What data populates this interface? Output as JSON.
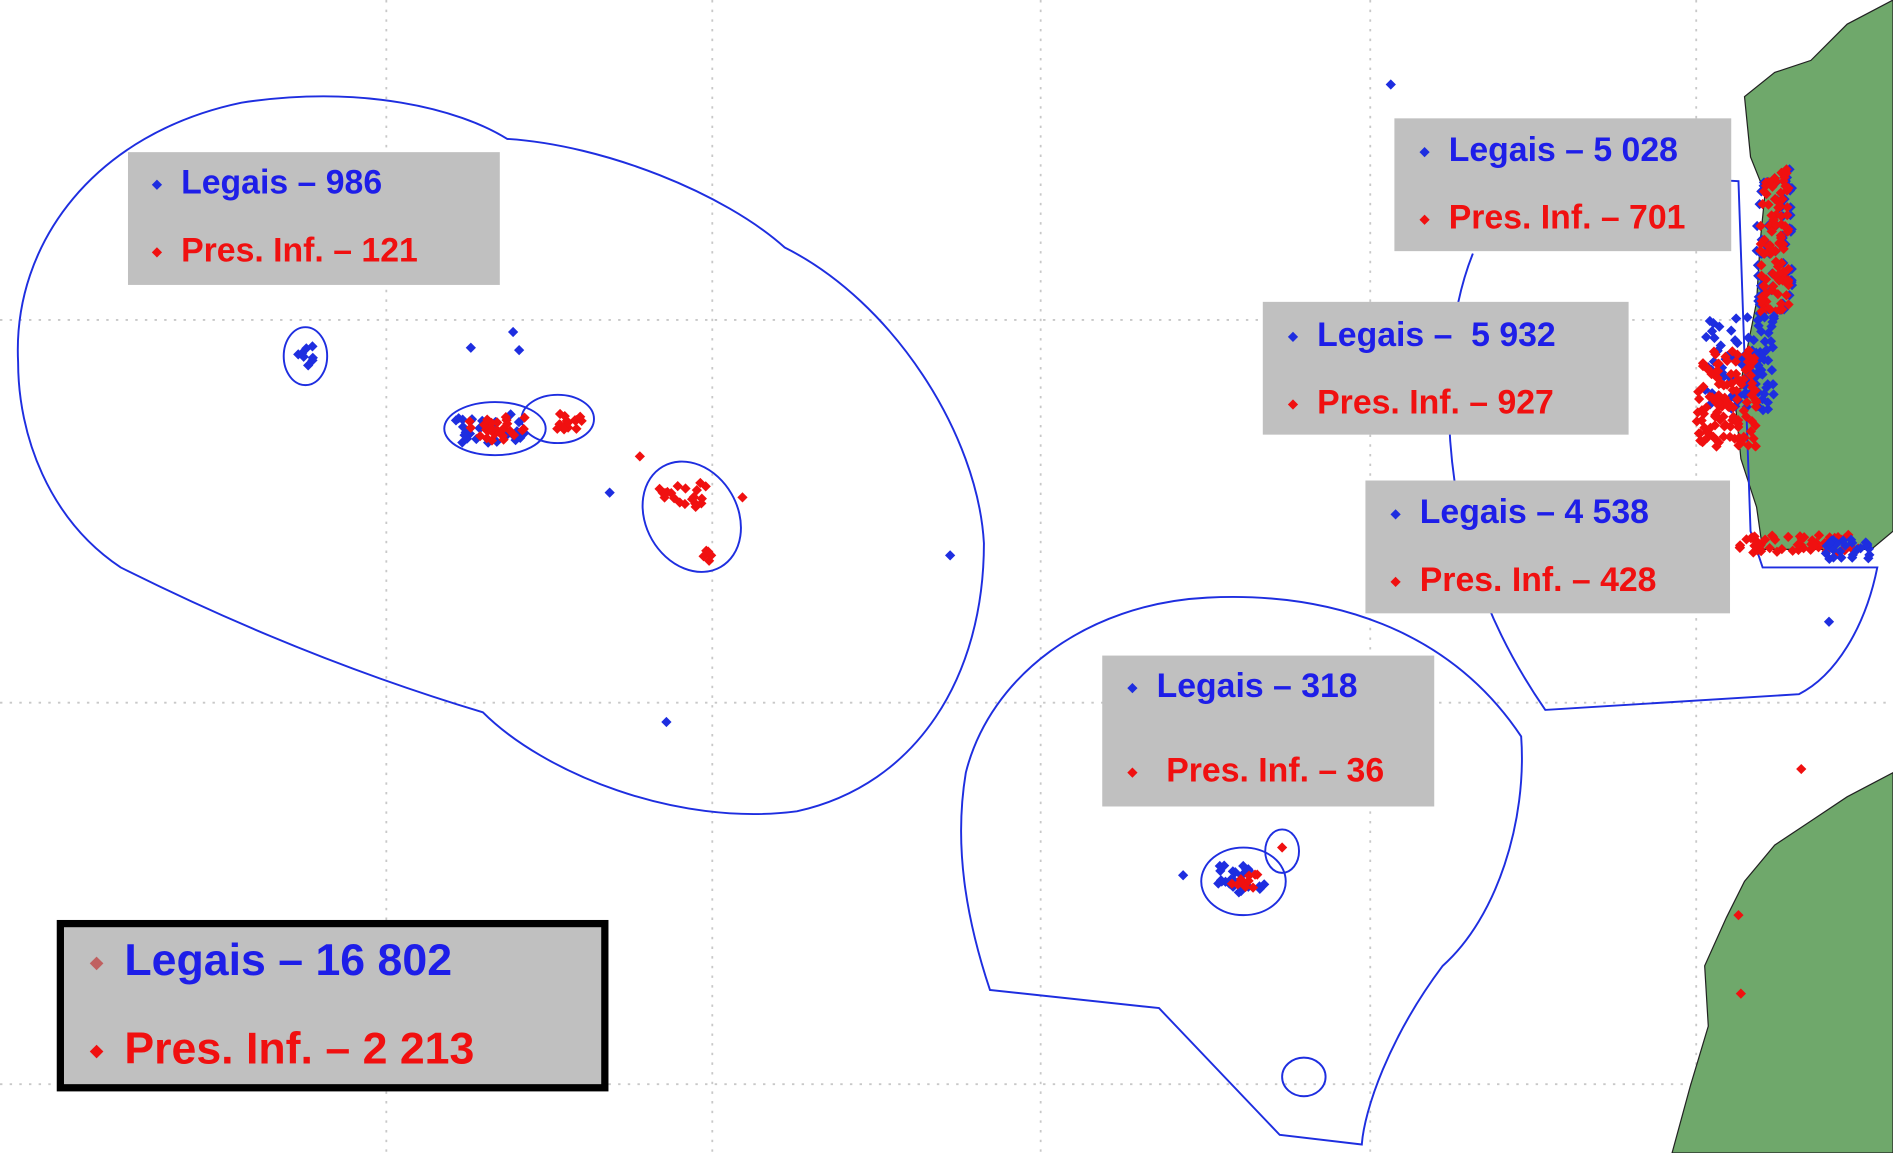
{
  "boxes": [
    {
      "legal": "Legais – 986",
      "infraction": "Pres. Inf. – 121"
    },
    {
      "legal": "Legais – 5 028",
      "infraction": "Pres. Inf. – 701"
    },
    {
      "legal": "Legais –  5 932",
      "infraction": "Pres. Inf. – 927"
    },
    {
      "legal": "Legais – 4 538",
      "infraction": "Pres. Inf. – 428"
    },
    {
      "legal": "Legais – 318",
      "infraction": "Pres. Inf. – 36"
    }
  ],
  "total": {
    "legal": "Legais – 16 802",
    "infraction": "Pres. Inf. – 2 213"
  }
}
